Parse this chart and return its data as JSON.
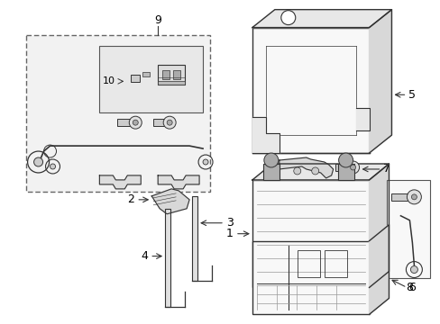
{
  "background_color": "#ffffff",
  "line_color": "#333333",
  "text_color": "#000000",
  "fig_width": 4.89,
  "fig_height": 3.6,
  "dpi": 100,
  "gray_fill": "#f2f2f2",
  "gray_fill2": "#e8e8e8",
  "gray_fill3": "#d8d8d8",
  "part_fill": "#f8f8f8"
}
